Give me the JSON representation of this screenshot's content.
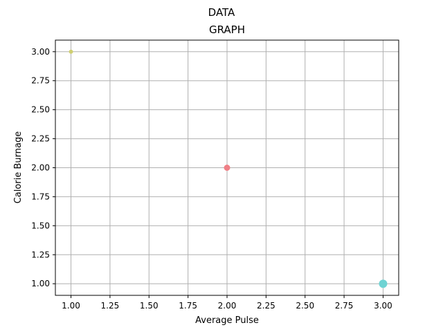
{
  "chart_data": {
    "type": "scatter",
    "suptitle": "DATA",
    "title": "GRAPH",
    "xlabel": "Average Pulse",
    "ylabel": "Calorie Burnage",
    "xlim": [
      0.9,
      3.1
    ],
    "ylim": [
      0.9,
      3.1
    ],
    "xticks": [
      "1.00",
      "1.25",
      "1.50",
      "1.75",
      "2.00",
      "2.25",
      "2.50",
      "2.75",
      "3.00"
    ],
    "yticks": [
      "1.00",
      "1.25",
      "1.50",
      "1.75",
      "2.00",
      "2.25",
      "2.50",
      "2.75",
      "3.00"
    ],
    "grid": true,
    "points": [
      {
        "x": 1,
        "y": 3,
        "color": "#cfcf72",
        "size": 1
      },
      {
        "x": 2,
        "y": 2,
        "color": "#ef7f86",
        "size": 2
      },
      {
        "x": 3,
        "y": 1,
        "color": "#6fd3d3",
        "size": 3
      }
    ]
  }
}
